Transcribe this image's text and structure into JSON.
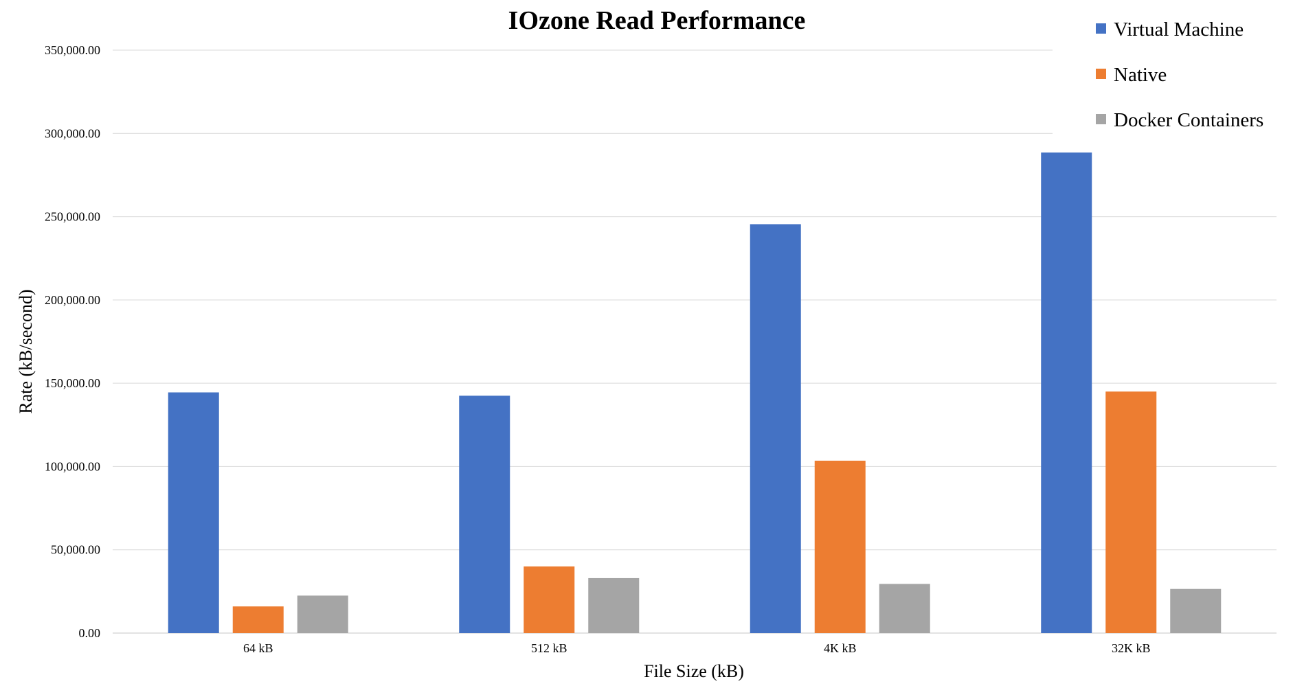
{
  "chart_data": {
    "type": "bar",
    "title": "IOzone Read Performance",
    "xlabel": "File Size (kB)",
    "ylabel": "Rate (kB/second)",
    "categories": [
      "64 kB",
      "512 kB",
      "4K kB",
      "32K kB"
    ],
    "series": [
      {
        "name": "Virtual Machine",
        "color": "#4472c4",
        "values": [
          144500,
          142500,
          245500,
          288500
        ]
      },
      {
        "name": "Native",
        "color": "#ed7d31",
        "values": [
          16000,
          40000,
          103500,
          145000
        ]
      },
      {
        "name": "Docker Containers",
        "color": "#a5a5a5",
        "values": [
          22500,
          33000,
          29500,
          26500
        ]
      }
    ],
    "ylim": [
      0,
      350000
    ],
    "yticks": [
      0,
      50000,
      100000,
      150000,
      200000,
      250000,
      300000,
      350000
    ],
    "ytick_labels": [
      "0.00",
      "50,000.00",
      "100,000.00",
      "150,000.00",
      "200,000.00",
      "250,000.00",
      "300,000.00",
      "350,000.00"
    ],
    "grid": true,
    "legend_position": "top-right"
  }
}
